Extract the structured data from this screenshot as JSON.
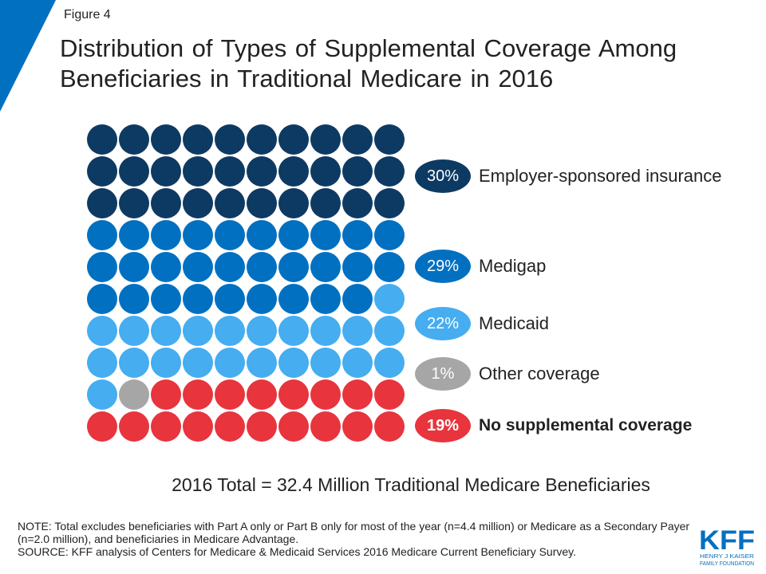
{
  "figure_label": "Figure 4",
  "title": "Distribution of Types of Supplemental Coverage Among Beneficiaries in Traditional Medicare in 2016",
  "colors": {
    "employer": "#0d3a63",
    "medigap": "#0270c1",
    "medicaid": "#45adf0",
    "other": "#a6a6a6",
    "none": "#e8343d",
    "accent": "#0270c1"
  },
  "chart_data": {
    "type": "waffle",
    "unit_count": 100,
    "series": [
      {
        "name": "Employer-sponsored insurance",
        "value": 30,
        "label": "30%",
        "color": "#0d3a63"
      },
      {
        "name": "Medigap",
        "value": 29,
        "label": "29%",
        "color": "#0270c1"
      },
      {
        "name": "Medicaid",
        "value": 22,
        "label": "22%",
        "color": "#45adf0"
      },
      {
        "name": "Other coverage",
        "value": 1,
        "label": "1%",
        "color": "#a6a6a6"
      },
      {
        "name": "No supplemental coverage",
        "value": 19,
        "label": "19%",
        "color": "#e8343d",
        "emphasis": true
      }
    ]
  },
  "total_text": "2016 Total = 32.4 Million Traditional Medicare Beneficiaries",
  "note_text": "NOTE: Total excludes beneficiaries with Part A only or Part B only for most of the year (n=4.4 million) or Medicare as a Secondary Payer (n=2.0 million), and beneficiaries in Medicare Advantage.",
  "source_text": "SOURCE: KFF analysis of Centers for Medicare & Medicaid Services 2016 Medicare Current Beneficiary Survey.",
  "logo": {
    "mark": "KFF",
    "line1": "HENRY J KAISER",
    "line2": "FAMILY FOUNDATION"
  }
}
